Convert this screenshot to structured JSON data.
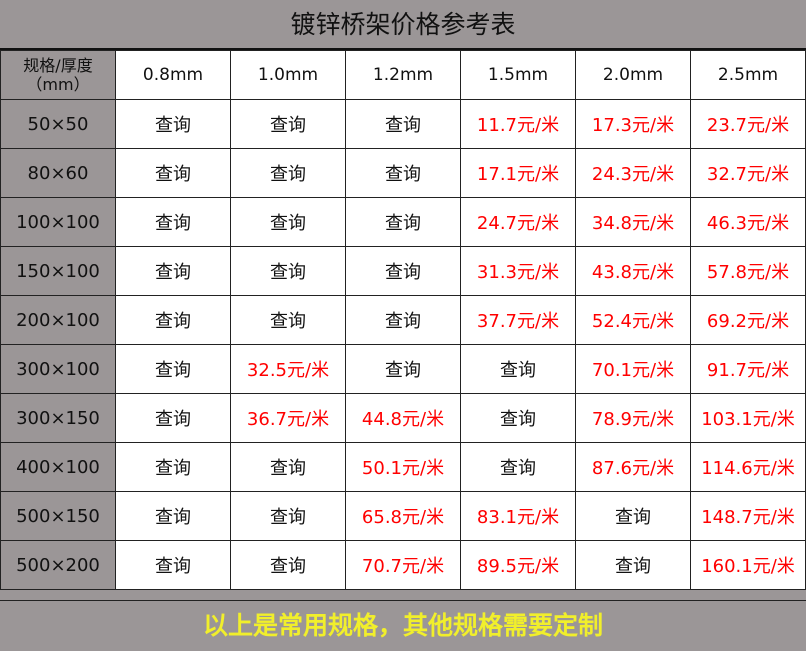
{
  "title": "镀锌桥架价格参考表",
  "corner_label_line1": "规格/厚度",
  "corner_label_line2": "（mm）",
  "thickness_headers": [
    "0.8mm",
    "1.0mm",
    "1.2mm",
    "1.5mm",
    "2.0mm",
    "2.5mm"
  ],
  "rows": [
    {
      "size": "50×50",
      "cells": [
        "查询",
        "查询",
        "查询",
        "11.7元/米",
        "17.3元/米",
        "23.7元/米"
      ]
    },
    {
      "size": "80×60",
      "cells": [
        "查询",
        "查询",
        "查询",
        "17.1元/米",
        "24.3元/米",
        "32.7元/米"
      ]
    },
    {
      "size": "100×100",
      "cells": [
        "查询",
        "查询",
        "查询",
        "24.7元/米",
        "34.8元/米",
        "46.3元/米"
      ]
    },
    {
      "size": "150×100",
      "cells": [
        "查询",
        "查询",
        "查询",
        "31.3元/米",
        "43.8元/米",
        "57.8元/米"
      ]
    },
    {
      "size": "200×100",
      "cells": [
        "查询",
        "查询",
        "查询",
        "37.7元/米",
        "52.4元/米",
        "69.2元/米"
      ]
    },
    {
      "size": "300×100",
      "cells": [
        "查询",
        "32.5元/米",
        "查询",
        "查询",
        "70.1元/米",
        "91.7元/米"
      ]
    },
    {
      "size": "300×150",
      "cells": [
        "查询",
        "36.7元/米",
        "44.8元/米",
        "查询",
        "78.9元/米",
        "103.1元/米"
      ]
    },
    {
      "size": "400×100",
      "cells": [
        "查询",
        "查询",
        "50.1元/米",
        "查询",
        "87.6元/米",
        "114.6元/米"
      ]
    },
    {
      "size": "500×150",
      "cells": [
        "查询",
        "查询",
        "65.8元/米",
        "83.1元/米",
        "查询",
        "148.7元/米"
      ]
    },
    {
      "size": "500×200",
      "cells": [
        "查询",
        "查询",
        "70.7元/米",
        "89.5元/米",
        "查询",
        "160.1元/米"
      ]
    }
  ],
  "footer": "以上是常用规格，其他规格需要定制",
  "colors": {
    "header_gray": "#9b9697",
    "price_red": "#ff0000",
    "footer_yellow": "#f1ef2b"
  }
}
